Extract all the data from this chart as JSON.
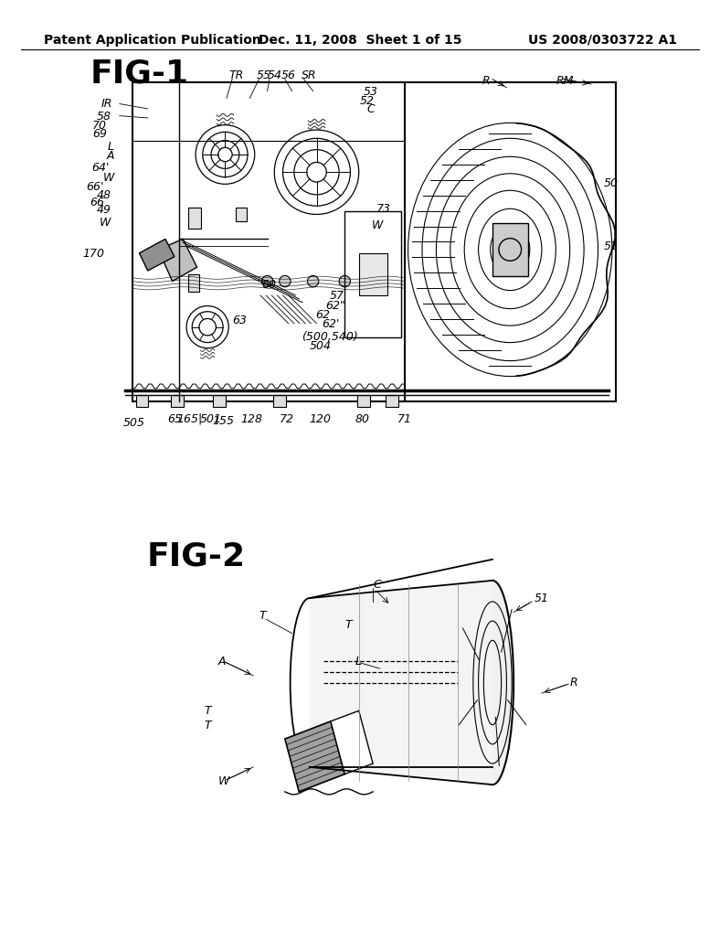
{
  "background_color": "#ffffff",
  "header_left": "Patent Application Publication",
  "header_center": "Dec. 11, 2008  Sheet 1 of 15",
  "header_right": "US 2008/0303722 A1",
  "fig1_label": "FIG-1",
  "fig2_label": "FIG-2"
}
